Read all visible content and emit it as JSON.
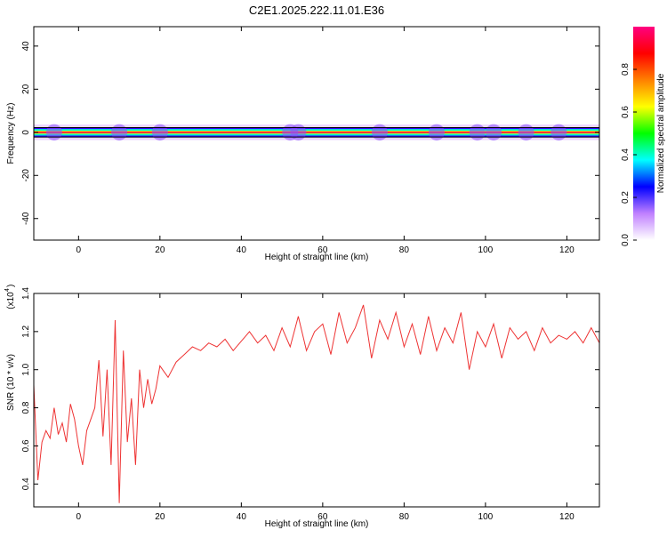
{
  "title": "C2E1.2025.222.11.01.E36",
  "chart_data": [
    {
      "type": "heatmap",
      "xlabel": "Height of straight line (km)",
      "ylabel": "Frequency (Hz)",
      "xlim": [
        -11,
        128
      ],
      "ylim": [
        -50,
        49
      ],
      "xticks": [
        0,
        20,
        40,
        60,
        80,
        100,
        120
      ],
      "xtick_labels": [
        "0",
        "20",
        "40",
        "60",
        "80",
        "100",
        "120"
      ],
      "yticks": [
        40,
        20,
        0,
        -20,
        -40
      ],
      "ytick_labels": [
        "40",
        "20",
        "0",
        "-20",
        "-40"
      ],
      "band_center_hz": 0,
      "band_halfwidth_hz": 2,
      "hotspots_km": [
        -6,
        10,
        20,
        52,
        54,
        74,
        88,
        98,
        102,
        110,
        118
      ],
      "colorbar": {
        "label": "Normalized spectral amplitude",
        "range": [
          0,
          1
        ],
        "ticks": [
          0.0,
          0.2,
          0.4,
          0.6,
          0.8
        ],
        "tick_labels": [
          "0.0",
          "0.2",
          "0.4",
          "0.6",
          "0.8"
        ],
        "colors": [
          "#ffffff",
          "#c080ff",
          "#0000ff",
          "#00ffff",
          "#00ff00",
          "#ffff00",
          "#ff8000",
          "#ff0000",
          "#ff0080"
        ]
      },
      "grid": false
    },
    {
      "type": "line",
      "xlabel": "Height of straight line (km)",
      "ylabel": "SNR (10 * v/v)",
      "y_exponent_label": "(x10",
      "y_exponent_power": "4",
      "xlim": [
        -11,
        128
      ],
      "ylim": [
        0.28,
        1.4
      ],
      "xticks": [
        0,
        20,
        40,
        60,
        80,
        100,
        120
      ],
      "xtick_labels": [
        "0",
        "20",
        "40",
        "60",
        "80",
        "100",
        "120"
      ],
      "yticks": [
        0.4,
        0.6,
        0.8,
        1.0,
        1.2,
        1.4
      ],
      "ytick_labels": [
        "0.4",
        "0.6",
        "0.8",
        "1.0",
        "1.2",
        "1.4"
      ],
      "color": "#ee3333",
      "grid": false,
      "series": [
        {
          "x": [
            -11,
            -10,
            -9,
            -8,
            -7,
            -6,
            -5,
            -4,
            -3,
            -2,
            -1,
            0,
            1,
            2,
            3,
            4,
            5,
            6,
            7,
            8,
            9,
            10,
            11,
            12,
            13,
            14,
            15,
            16,
            17,
            18,
            19,
            20,
            22,
            24,
            26,
            28,
            30,
            32,
            34,
            36,
            38,
            40,
            42,
            44,
            46,
            48,
            50,
            52,
            54,
            56,
            58,
            60,
            62,
            64,
            66,
            68,
            70,
            72,
            74,
            76,
            78,
            80,
            82,
            84,
            86,
            88,
            90,
            92,
            94,
            96,
            98,
            100,
            102,
            104,
            106,
            108,
            110,
            112,
            114,
            116,
            118,
            120,
            122,
            124,
            126,
            128
          ],
          "y": [
            0.92,
            0.42,
            0.62,
            0.68,
            0.64,
            0.8,
            0.66,
            0.72,
            0.62,
            0.82,
            0.74,
            0.6,
            0.5,
            0.68,
            0.74,
            0.8,
            1.05,
            0.65,
            1.0,
            0.5,
            1.26,
            0.3,
            1.1,
            0.62,
            0.85,
            0.5,
            1.0,
            0.8,
            0.95,
            0.82,
            0.9,
            1.02,
            0.96,
            1.04,
            1.08,
            1.12,
            1.1,
            1.14,
            1.12,
            1.16,
            1.1,
            1.15,
            1.2,
            1.14,
            1.18,
            1.1,
            1.22,
            1.12,
            1.28,
            1.1,
            1.2,
            1.24,
            1.08,
            1.3,
            1.14,
            1.22,
            1.34,
            1.06,
            1.26,
            1.16,
            1.3,
            1.12,
            1.24,
            1.08,
            1.28,
            1.1,
            1.22,
            1.14,
            1.3,
            1.0,
            1.2,
            1.12,
            1.24,
            1.06,
            1.22,
            1.16,
            1.2,
            1.1,
            1.22,
            1.14,
            1.18,
            1.16,
            1.2,
            1.14,
            1.22,
            1.14
          ]
        }
      ]
    }
  ]
}
